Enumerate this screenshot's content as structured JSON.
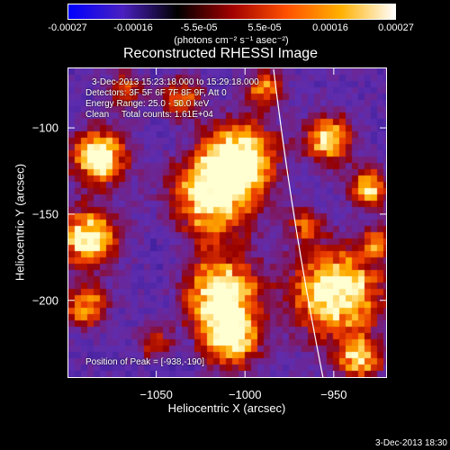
{
  "colorbar": {
    "ticks": [
      "-0.00027",
      "-0.00016",
      "-5.5e-05",
      "5.5e-05",
      "0.00016",
      "0.00027"
    ],
    "unit_label": "(photons cm⁻² s⁻¹ asec⁻²)",
    "colors": [
      "#0000ff",
      "#4a20c0",
      "#000000",
      "#a00000",
      "#ff5000",
      "#ffb000",
      "#ffffff"
    ]
  },
  "chart_data": {
    "type": "heatmap",
    "title": "Reconstructed RHESSI Image",
    "xlabel": "Heliocentric X (arcsec)",
    "ylabel": "Heliocentric Y (arcsec)",
    "xlim": [
      -1100,
      -920
    ],
    "ylim": [
      -245,
      -65
    ],
    "xticks": [
      {
        "value": -1050,
        "label": "−1050"
      },
      {
        "value": -1000,
        "label": "−1000"
      },
      {
        "value": -950,
        "label": "−950"
      }
    ],
    "yticks": [
      {
        "value": -100,
        "label": "−100"
      },
      {
        "value": -150,
        "label": "−150"
      },
      {
        "value": -200,
        "label": "−200"
      }
    ],
    "peak": {
      "x": -938,
      "y": -190
    },
    "annotations": {
      "time": "3-Dec-2013 15:23:18.000 to 15:29:18.000",
      "detectors": "Detectors: 3F 5F 6F 7F 8F 9F, Att 0",
      "energy": "Energy Range: 25.0 - 50.0 keV",
      "clean": "Clean     Total counts: 1.61E+04",
      "peak_text": "Position of Peak = [-938,-190]"
    }
  },
  "footer": {
    "timestamp": "3-Dec-2013 18:30"
  }
}
